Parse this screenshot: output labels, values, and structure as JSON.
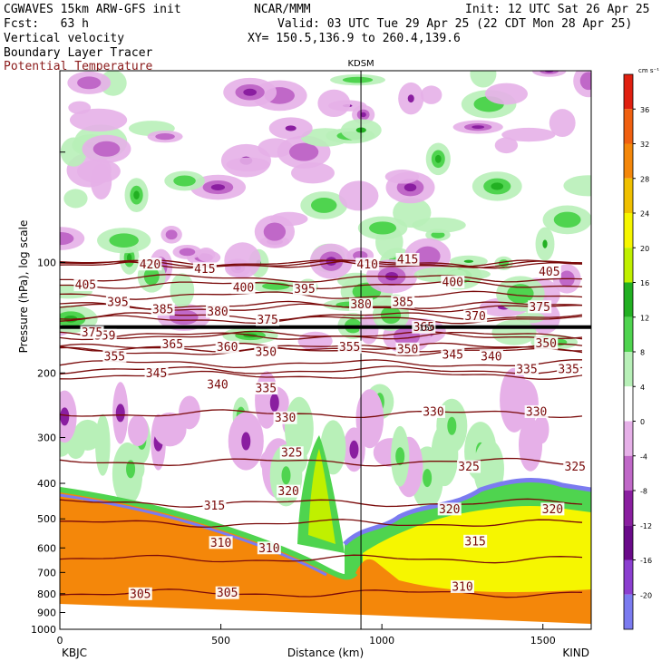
{
  "header": {
    "model": "CGWAVES 15km ARW-GFS init",
    "forecast": "Fcst:   63 h",
    "org": "NCAR/MMM",
    "init": "Init: 12 UTC Sat 26 Apr 25",
    "valid": "Valid: 03 UTC Tue 29 Apr 25 (22 CDT Mon 28 Apr 25)",
    "xy": "XY= 150.5,136.9 to 260.4,139.6",
    "field1": "Vertical velocity",
    "field2": "Boundary Layer Tracer",
    "field3": "Potential Temperature"
  },
  "colors": {
    "theta_contour": "#7a0a0a",
    "terrain": "#f4870a",
    "pbl_yellow": "#f6f600",
    "up_green": "#4fd44f",
    "down_purple": "#8a1ea0"
  },
  "chart_data": {
    "type": "heatmap",
    "title": "KDSM",
    "xlabel": "Distance (km)",
    "ylabel": "Pressure (hPa), log scale",
    "x_range": [
      0,
      1650
    ],
    "y_range_hPa": [
      1000,
      30
    ],
    "y_scale": "log",
    "x_ticks": [
      0,
      500,
      1000,
      1500
    ],
    "y_ticks": [
      100,
      200,
      300,
      400,
      500,
      600,
      700,
      800,
      900,
      1000
    ],
    "x_endpoints": [
      "KBJC",
      "KIND"
    ],
    "station_marker": {
      "label": "KDSM",
      "x_km": 935
    },
    "tropopause_label": "150",
    "colorbar": {
      "units": "cm s⁻¹",
      "levels": [
        -20,
        -16,
        -12,
        -8,
        -4,
        0,
        4,
        8,
        12,
        16,
        20,
        24,
        28,
        32,
        36
      ],
      "colors": [
        "#7b7bf0",
        "#8b3fd0",
        "#6a0a8a",
        "#8a1ea0",
        "#c068c8",
        "#e6b0e8",
        "#ffffff",
        "#b8f0b8",
        "#4fd44f",
        "#22b022",
        "#c0f000",
        "#f6f600",
        "#f0c000",
        "#f4870a",
        "#f06010",
        "#e02010"
      ]
    },
    "theta_contours": [
      {
        "theta": 305,
        "labels": [
          {
            "x": 250,
            "p": 800
          },
          {
            "x": 520,
            "p": 795
          }
        ]
      },
      {
        "theta": 310,
        "labels": [
          {
            "x": 500,
            "p": 580
          },
          {
            "x": 650,
            "p": 600
          },
          {
            "x": 1250,
            "p": 765
          }
        ]
      },
      {
        "theta": 315,
        "labels": [
          {
            "x": 480,
            "p": 460
          },
          {
            "x": 1290,
            "p": 575
          }
        ]
      },
      {
        "theta": 320,
        "labels": [
          {
            "x": 710,
            "p": 420
          },
          {
            "x": 1210,
            "p": 470
          },
          {
            "x": 1530,
            "p": 470
          }
        ]
      },
      {
        "theta": 325,
        "labels": [
          {
            "x": 720,
            "p": 330
          },
          {
            "x": 1270,
            "p": 360
          },
          {
            "x": 1600,
            "p": 360
          }
        ]
      },
      {
        "theta": 330,
        "labels": [
          {
            "x": 700,
            "p": 265
          },
          {
            "x": 1160,
            "p": 255
          },
          {
            "x": 1480,
            "p": 255
          }
        ]
      },
      {
        "theta": 335,
        "labels": [
          {
            "x": 640,
            "p": 220
          },
          {
            "x": 1450,
            "p": 195
          },
          {
            "x": 1580,
            "p": 195
          }
        ]
      },
      {
        "theta": 340,
        "labels": [
          {
            "x": 490,
            "p": 215
          },
          {
            "x": 1340,
            "p": 180
          }
        ]
      },
      {
        "theta": 345,
        "labels": [
          {
            "x": 300,
            "p": 200
          },
          {
            "x": 1220,
            "p": 178
          }
        ]
      },
      {
        "theta": 350,
        "labels": [
          {
            "x": 640,
            "p": 175
          },
          {
            "x": 1080,
            "p": 172
          },
          {
            "x": 1510,
            "p": 166
          }
        ]
      },
      {
        "theta": 355,
        "labels": [
          {
            "x": 170,
            "p": 180
          },
          {
            "x": 900,
            "p": 170
          }
        ]
      },
      {
        "theta": 359,
        "labels": [
          {
            "x": 140,
            "p": 158
          }
        ]
      },
      {
        "theta": 360,
        "labels": [
          {
            "x": 520,
            "p": 170
          }
        ]
      },
      {
        "theta": 365,
        "labels": [
          {
            "x": 350,
            "p": 167
          },
          {
            "x": 1130,
            "p": 150
          }
        ]
      },
      {
        "theta": 370,
        "labels": [
          {
            "x": 1290,
            "p": 140
          }
        ]
      },
      {
        "theta": 375,
        "labels": [
          {
            "x": 100,
            "p": 155
          },
          {
            "x": 645,
            "p": 143
          },
          {
            "x": 1490,
            "p": 132
          }
        ]
      },
      {
        "theta": 380,
        "labels": [
          {
            "x": 490,
            "p": 136
          },
          {
            "x": 935,
            "p": 130
          }
        ]
      },
      {
        "theta": 385,
        "labels": [
          {
            "x": 320,
            "p": 134
          },
          {
            "x": 1065,
            "p": 128
          }
        ]
      },
      {
        "theta": 395,
        "labels": [
          {
            "x": 180,
            "p": 128
          },
          {
            "x": 760,
            "p": 118
          }
        ]
      },
      {
        "theta": 400,
        "labels": [
          {
            "x": 570,
            "p": 117
          },
          {
            "x": 1220,
            "p": 113
          }
        ]
      },
      {
        "theta": 405,
        "labels": [
          {
            "x": 80,
            "p": 115
          },
          {
            "x": 1520,
            "p": 106
          }
        ]
      },
      {
        "theta": 410,
        "labels": [
          {
            "x": 955,
            "p": 101
          }
        ]
      },
      {
        "theta": 415,
        "labels": [
          {
            "x": 450,
            "p": 104
          },
          {
            "x": 1080,
            "p": 98
          }
        ]
      },
      {
        "theta": 420,
        "labels": [
          {
            "x": 280,
            "p": 101
          }
        ]
      }
    ]
  }
}
